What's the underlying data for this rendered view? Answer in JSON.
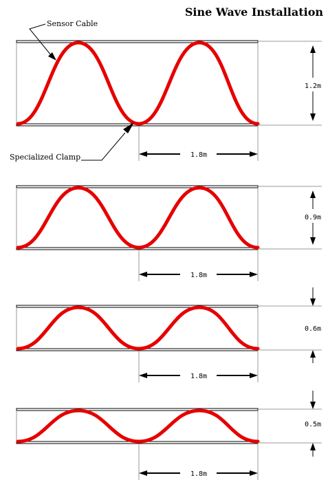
{
  "title": "Sine Wave Installation",
  "callouts": {
    "sensor_cable": "Sensor Cable",
    "specialized_clamp": "Specialized Clamp"
  },
  "colors": {
    "cable": "#e60000",
    "line": "#000000",
    "rail": "#9a9a9a"
  },
  "panels": [
    {
      "height_label": "1.2m",
      "spacing_label": "1.8m",
      "height_m": 1.2,
      "spacing_m": 1.8
    },
    {
      "height_label": "0.9m",
      "spacing_label": "1.8m",
      "height_m": 0.9,
      "spacing_m": 1.8
    },
    {
      "height_label": "0.6m",
      "spacing_label": "1.8m",
      "height_m": 0.6,
      "spacing_m": 1.8
    },
    {
      "height_label": "0.5m",
      "spacing_label": "1.8m",
      "height_m": 0.5,
      "spacing_m": 1.8
    }
  ]
}
